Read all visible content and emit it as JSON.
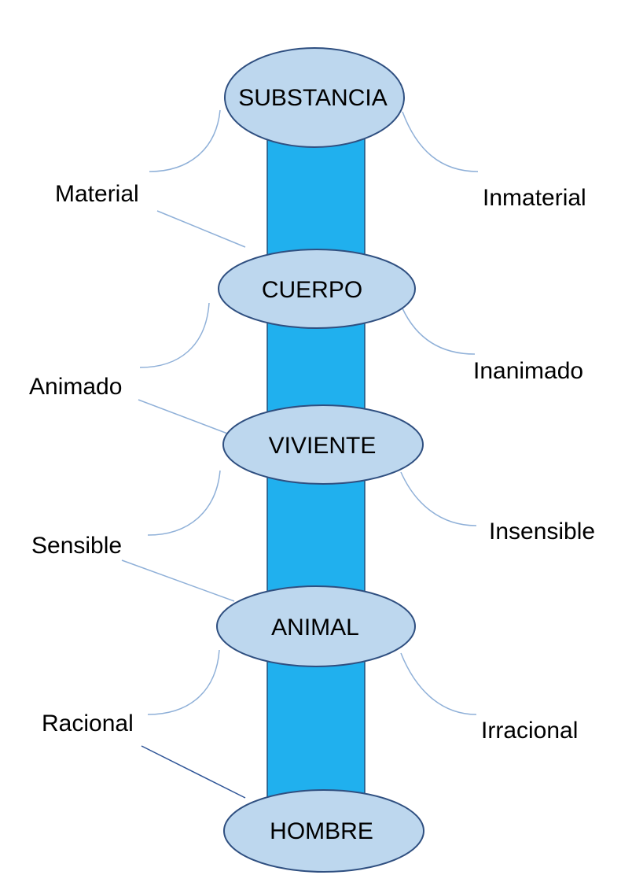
{
  "colors": {
    "trunk": "#20b0ee",
    "trunk_border": "#1f4e79",
    "node_fill": "#bdd7ee",
    "node_border": "#2f4f80",
    "connector": "#8fb0d8",
    "dark_connector": "#2f5597"
  },
  "nodes": {
    "substancia": "SUBSTANCIA",
    "cuerpo": "CUERPO",
    "viviente": "VIVIENTE",
    "animal": "ANIMAL",
    "hombre": "HOMBRE"
  },
  "labels": {
    "material": "Material",
    "inmaterial": "Inmaterial",
    "animado": "Animado",
    "inanimado": "Inanimado",
    "sensible": "Sensible",
    "insensible": "Insensible",
    "racional": "Racional",
    "irracional": "Irracional"
  }
}
